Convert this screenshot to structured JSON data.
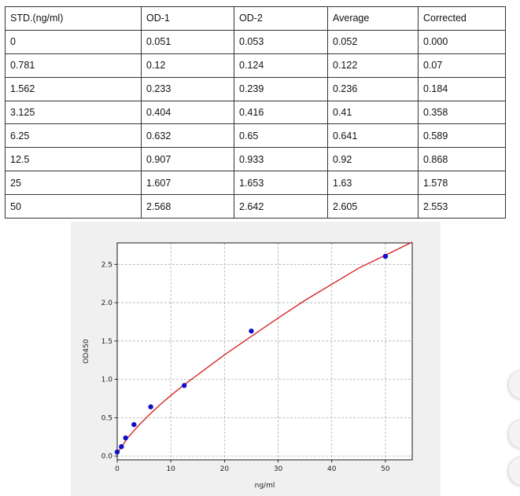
{
  "table": {
    "headers": [
      "STD.(ng/ml)",
      "OD-1",
      "OD-2",
      "Average",
      "Corrected"
    ],
    "rows": [
      [
        "0",
        "0.051",
        "0.053",
        "0.052",
        "0.000"
      ],
      [
        "0.781",
        "0.12",
        "0.124",
        "0.122",
        "0.07"
      ],
      [
        "1.562",
        "0.233",
        "0.239",
        "0.236",
        "0.184"
      ],
      [
        "3.125",
        "0.404",
        "0.416",
        "0.41",
        "0.358"
      ],
      [
        "6.25",
        "0.632",
        "0.65",
        "0.641",
        "0.589"
      ],
      [
        "12.5",
        "0.907",
        "0.933",
        "0.92",
        "0.868"
      ],
      [
        "25",
        "1.607",
        "1.653",
        "1.63",
        "1.578"
      ],
      [
        "50",
        "2.568",
        "2.642",
        "2.605",
        "2.553"
      ]
    ]
  },
  "chart_data": {
    "type": "scatter",
    "xlabel": "ng/ml",
    "ylabel": "OD450",
    "xlim": [
      0,
      55
    ],
    "ylim": [
      -0.05,
      2.78
    ],
    "xticks": [
      0,
      10,
      20,
      30,
      40,
      50
    ],
    "yticks": [
      0.0,
      0.5,
      1.0,
      1.5,
      2.0,
      2.5
    ],
    "ytick_labels": [
      "0.0",
      "0.5",
      "1.0",
      "1.5",
      "2.0",
      "2.5"
    ],
    "grid": true,
    "points": {
      "x": [
        0,
        0.781,
        1.562,
        3.125,
        6.25,
        12.5,
        25,
        50
      ],
      "y": [
        0.052,
        0.122,
        0.236,
        0.41,
        0.641,
        0.92,
        1.63,
        2.605
      ],
      "color": "#1010c8"
    },
    "fit_curve": {
      "color": "#d62728",
      "x": [
        0,
        0.5,
        1,
        2,
        3,
        4,
        6,
        8,
        10,
        12.5,
        15,
        20,
        25,
        30,
        35,
        40,
        45,
        50,
        55
      ],
      "y": [
        0.03,
        0.09,
        0.14,
        0.24,
        0.32,
        0.4,
        0.54,
        0.67,
        0.79,
        0.93,
        1.06,
        1.32,
        1.56,
        1.8,
        2.03,
        2.24,
        2.45,
        2.62,
        2.79
      ]
    }
  }
}
